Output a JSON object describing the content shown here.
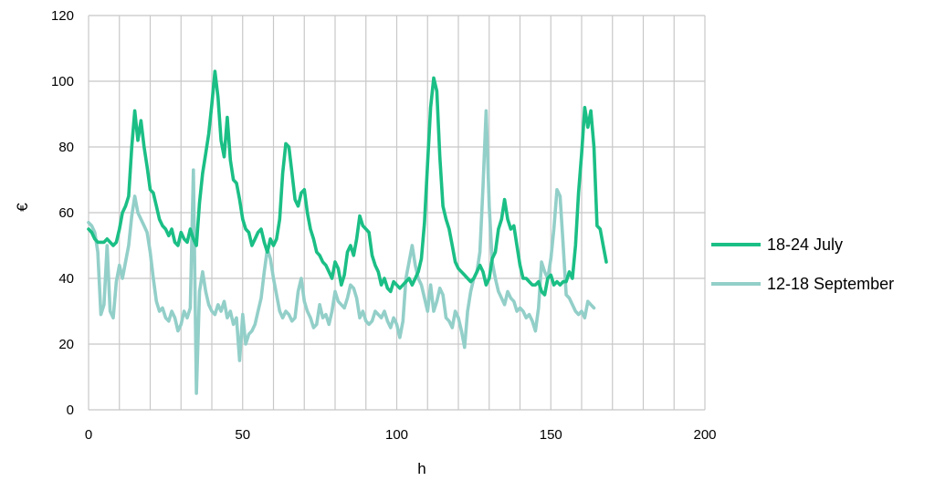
{
  "chart_data": {
    "type": "line",
    "title": "",
    "xlabel": "h",
    "ylabel": "€",
    "xlim": [
      0,
      200
    ],
    "ylim": [
      0,
      120
    ],
    "xticks": [
      0,
      50,
      100,
      150,
      200
    ],
    "yticks": [
      0,
      20,
      40,
      60,
      80,
      100,
      120
    ],
    "grid": true,
    "legend_position": "right",
    "series": [
      {
        "name": "18-24 July",
        "color": "#1bbf86",
        "points": [
          [
            0,
            55
          ],
          [
            1,
            54
          ],
          [
            2,
            52
          ],
          [
            3,
            51
          ],
          [
            4,
            51
          ],
          [
            5,
            51
          ],
          [
            6,
            52
          ],
          [
            7,
            51
          ],
          [
            8,
            50
          ],
          [
            9,
            51
          ],
          [
            10,
            55
          ],
          [
            11,
            60
          ],
          [
            12,
            62
          ],
          [
            13,
            65
          ],
          [
            14,
            80
          ],
          [
            15,
            91
          ],
          [
            16,
            82
          ],
          [
            17,
            88
          ],
          [
            18,
            80
          ],
          [
            19,
            74
          ],
          [
            20,
            67
          ],
          [
            21,
            66
          ],
          [
            22,
            62
          ],
          [
            23,
            58
          ],
          [
            24,
            56
          ],
          [
            25,
            55
          ],
          [
            26,
            53
          ],
          [
            27,
            55
          ],
          [
            28,
            51
          ],
          [
            29,
            50
          ],
          [
            30,
            54
          ],
          [
            31,
            52
          ],
          [
            32,
            51
          ],
          [
            33,
            55
          ],
          [
            34,
            52
          ],
          [
            35,
            50
          ],
          [
            36,
            63
          ],
          [
            37,
            72
          ],
          [
            38,
            78
          ],
          [
            39,
            84
          ],
          [
            40,
            93
          ],
          [
            41,
            103
          ],
          [
            42,
            95
          ],
          [
            43,
            82
          ],
          [
            44,
            77
          ],
          [
            45,
            89
          ],
          [
            46,
            76
          ],
          [
            47,
            70
          ],
          [
            48,
            69
          ],
          [
            49,
            64
          ],
          [
            50,
            58
          ],
          [
            51,
            55
          ],
          [
            52,
            54
          ],
          [
            53,
            50
          ],
          [
            54,
            52
          ],
          [
            55,
            54
          ],
          [
            56,
            55
          ],
          [
            57,
            51
          ],
          [
            58,
            48
          ],
          [
            59,
            52
          ],
          [
            60,
            50
          ],
          [
            61,
            52
          ],
          [
            62,
            58
          ],
          [
            63,
            72
          ],
          [
            64,
            81
          ],
          [
            65,
            80
          ],
          [
            66,
            72
          ],
          [
            67,
            64
          ],
          [
            68,
            62
          ],
          [
            69,
            66
          ],
          [
            70,
            67
          ],
          [
            71,
            60
          ],
          [
            72,
            55
          ],
          [
            73,
            52
          ],
          [
            74,
            48
          ],
          [
            75,
            47
          ],
          [
            76,
            45
          ],
          [
            77,
            44
          ],
          [
            78,
            42
          ],
          [
            79,
            40
          ],
          [
            80,
            45
          ],
          [
            81,
            43
          ],
          [
            82,
            38
          ],
          [
            83,
            41
          ],
          [
            84,
            48
          ],
          [
            85,
            50
          ],
          [
            86,
            47
          ],
          [
            87,
            52
          ],
          [
            88,
            59
          ],
          [
            89,
            56
          ],
          [
            90,
            55
          ],
          [
            91,
            54
          ],
          [
            92,
            47
          ],
          [
            93,
            44
          ],
          [
            94,
            42
          ],
          [
            95,
            38
          ],
          [
            96,
            40
          ],
          [
            97,
            37
          ],
          [
            98,
            36
          ],
          [
            99,
            39
          ],
          [
            100,
            38
          ],
          [
            101,
            37
          ],
          [
            102,
            38
          ],
          [
            103,
            39
          ],
          [
            104,
            40
          ],
          [
            105,
            38
          ],
          [
            106,
            40
          ],
          [
            107,
            42
          ],
          [
            108,
            46
          ],
          [
            109,
            57
          ],
          [
            110,
            75
          ],
          [
            111,
            92
          ],
          [
            112,
            101
          ],
          [
            113,
            97
          ],
          [
            114,
            77
          ],
          [
            115,
            62
          ],
          [
            116,
            58
          ],
          [
            117,
            55
          ],
          [
            118,
            50
          ],
          [
            119,
            45
          ],
          [
            120,
            43
          ],
          [
            121,
            42
          ],
          [
            122,
            41
          ],
          [
            123,
            40
          ],
          [
            124,
            39
          ],
          [
            125,
            40
          ],
          [
            126,
            42
          ],
          [
            127,
            44
          ],
          [
            128,
            42
          ],
          [
            129,
            38
          ],
          [
            130,
            40
          ],
          [
            131,
            46
          ],
          [
            132,
            48
          ],
          [
            133,
            55
          ],
          [
            134,
            58
          ],
          [
            135,
            64
          ],
          [
            136,
            58
          ],
          [
            137,
            55
          ],
          [
            138,
            56
          ],
          [
            139,
            50
          ],
          [
            140,
            44
          ],
          [
            141,
            40
          ],
          [
            142,
            40
          ],
          [
            143,
            39
          ],
          [
            144,
            38
          ],
          [
            145,
            38
          ],
          [
            146,
            39
          ],
          [
            147,
            36
          ],
          [
            148,
            35
          ],
          [
            149,
            40
          ],
          [
            150,
            41
          ],
          [
            151,
            38
          ],
          [
            152,
            39
          ],
          [
            153,
            38
          ],
          [
            154,
            39
          ],
          [
            155,
            39
          ],
          [
            156,
            42
          ],
          [
            157,
            40
          ],
          [
            158,
            50
          ],
          [
            159,
            66
          ],
          [
            160,
            78
          ],
          [
            161,
            92
          ],
          [
            162,
            86
          ],
          [
            163,
            91
          ],
          [
            164,
            80
          ],
          [
            165,
            56
          ],
          [
            166,
            55
          ],
          [
            167,
            50
          ],
          [
            168,
            45
          ]
        ]
      },
      {
        "name": "12-18 September",
        "color": "#93cfc9",
        "points": [
          [
            0,
            57
          ],
          [
            1,
            56
          ],
          [
            2,
            54
          ],
          [
            3,
            48
          ],
          [
            4,
            29
          ],
          [
            5,
            32
          ],
          [
            6,
            50
          ],
          [
            7,
            30
          ],
          [
            8,
            28
          ],
          [
            9,
            39
          ],
          [
            10,
            44
          ],
          [
            11,
            40
          ],
          [
            12,
            45
          ],
          [
            13,
            50
          ],
          [
            14,
            59
          ],
          [
            15,
            65
          ],
          [
            16,
            60
          ],
          [
            17,
            58
          ],
          [
            18,
            56
          ],
          [
            19,
            54
          ],
          [
            20,
            48
          ],
          [
            21,
            40
          ],
          [
            22,
            33
          ],
          [
            23,
            30
          ],
          [
            24,
            31
          ],
          [
            25,
            28
          ],
          [
            26,
            27
          ],
          [
            27,
            30
          ],
          [
            28,
            28
          ],
          [
            29,
            24
          ],
          [
            30,
            26
          ],
          [
            31,
            30
          ],
          [
            32,
            28
          ],
          [
            33,
            31
          ],
          [
            34,
            73
          ],
          [
            35,
            5
          ],
          [
            36,
            36
          ],
          [
            37,
            42
          ],
          [
            38,
            36
          ],
          [
            39,
            32
          ],
          [
            40,
            30
          ],
          [
            41,
            29
          ],
          [
            42,
            32
          ],
          [
            43,
            30
          ],
          [
            44,
            33
          ],
          [
            45,
            28
          ],
          [
            46,
            30
          ],
          [
            47,
            26
          ],
          [
            48,
            28
          ],
          [
            49,
            15
          ],
          [
            50,
            29
          ],
          [
            51,
            20
          ],
          [
            52,
            23
          ],
          [
            53,
            24
          ],
          [
            54,
            26
          ],
          [
            55,
            30
          ],
          [
            56,
            34
          ],
          [
            57,
            42
          ],
          [
            58,
            49
          ],
          [
            59,
            46
          ],
          [
            60,
            40
          ],
          [
            61,
            35
          ],
          [
            62,
            30
          ],
          [
            63,
            28
          ],
          [
            64,
            30
          ],
          [
            65,
            29
          ],
          [
            66,
            27
          ],
          [
            67,
            28
          ],
          [
            68,
            36
          ],
          [
            69,
            40
          ],
          [
            70,
            33
          ],
          [
            71,
            30
          ],
          [
            72,
            28
          ],
          [
            73,
            25
          ],
          [
            74,
            26
          ],
          [
            75,
            32
          ],
          [
            76,
            28
          ],
          [
            77,
            29
          ],
          [
            78,
            26
          ],
          [
            79,
            30
          ],
          [
            80,
            36
          ],
          [
            81,
            33
          ],
          [
            82,
            32
          ],
          [
            83,
            31
          ],
          [
            84,
            34
          ],
          [
            85,
            38
          ],
          [
            86,
            37
          ],
          [
            87,
            34
          ],
          [
            88,
            28
          ],
          [
            89,
            30
          ],
          [
            90,
            27
          ],
          [
            91,
            26
          ],
          [
            92,
            27
          ],
          [
            93,
            30
          ],
          [
            94,
            29
          ],
          [
            95,
            28
          ],
          [
            96,
            30
          ],
          [
            97,
            27
          ],
          [
            98,
            25
          ],
          [
            99,
            28
          ],
          [
            100,
            26
          ],
          [
            101,
            22
          ],
          [
            102,
            27
          ],
          [
            103,
            40
          ],
          [
            104,
            45
          ],
          [
            105,
            50
          ],
          [
            106,
            44
          ],
          [
            107,
            40
          ],
          [
            108,
            38
          ],
          [
            109,
            34
          ],
          [
            110,
            30
          ],
          [
            111,
            38
          ],
          [
            112,
            30
          ],
          [
            113,
            33
          ],
          [
            114,
            37
          ],
          [
            115,
            35
          ],
          [
            116,
            28
          ],
          [
            117,
            27
          ],
          [
            118,
            25
          ],
          [
            119,
            30
          ],
          [
            120,
            28
          ],
          [
            121,
            24
          ],
          [
            122,
            19
          ],
          [
            123,
            30
          ],
          [
            124,
            36
          ],
          [
            125,
            40
          ],
          [
            126,
            42
          ],
          [
            127,
            48
          ],
          [
            128,
            68
          ],
          [
            129,
            91
          ],
          [
            130,
            62
          ],
          [
            131,
            45
          ],
          [
            132,
            40
          ],
          [
            133,
            36
          ],
          [
            134,
            34
          ],
          [
            135,
            32
          ],
          [
            136,
            36
          ],
          [
            137,
            34
          ],
          [
            138,
            33
          ],
          [
            139,
            30
          ],
          [
            140,
            31
          ],
          [
            141,
            30
          ],
          [
            142,
            28
          ],
          [
            143,
            29
          ],
          [
            144,
            27
          ],
          [
            145,
            24
          ],
          [
            146,
            31
          ],
          [
            147,
            45
          ],
          [
            148,
            42
          ],
          [
            149,
            40
          ],
          [
            150,
            46
          ],
          [
            151,
            55
          ],
          [
            152,
            67
          ],
          [
            153,
            65
          ],
          [
            154,
            50
          ],
          [
            155,
            35
          ],
          [
            156,
            34
          ],
          [
            157,
            32
          ],
          [
            158,
            30
          ],
          [
            159,
            29
          ],
          [
            160,
            30
          ],
          [
            161,
            28
          ],
          [
            162,
            33
          ],
          [
            163,
            32
          ],
          [
            164,
            31
          ]
        ]
      }
    ]
  }
}
